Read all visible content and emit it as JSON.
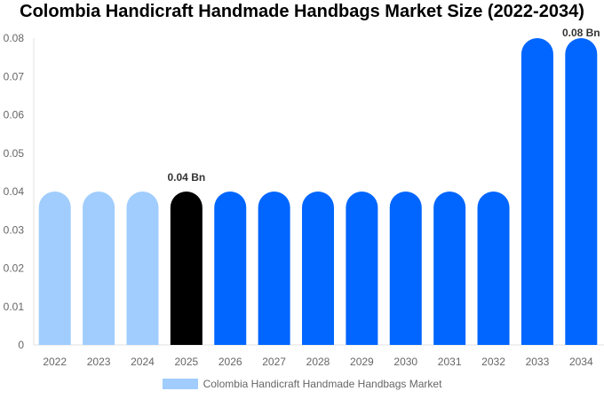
{
  "chart_data": {
    "type": "bar",
    "title": "Colombia Handicraft Handmade Handbags Market Size (2022-2034)",
    "categories": [
      "2022",
      "2023",
      "2024",
      "2025",
      "2026",
      "2027",
      "2028",
      "2029",
      "2030",
      "2031",
      "2032",
      "2033",
      "2034"
    ],
    "series": [
      {
        "name": "Colombia Handicraft Handmade Handbags Market",
        "values": [
          0.04,
          0.04,
          0.04,
          0.04,
          0.04,
          0.04,
          0.04,
          0.04,
          0.04,
          0.04,
          0.04,
          0.08,
          0.08
        ]
      }
    ],
    "bar_colors": [
      "#a0cdfd",
      "#a0cdfd",
      "#a0cdfd",
      "#000000",
      "#0066ff",
      "#0066ff",
      "#0066ff",
      "#0066ff",
      "#0066ff",
      "#0066ff",
      "#0066ff",
      "#0066ff",
      "#0066ff"
    ],
    "data_labels": {
      "3": "0.04 Bn",
      "12": "0.08 Bn"
    },
    "yticks": [
      "0",
      "0.01",
      "0.02",
      "0.03",
      "0.04",
      "0.05",
      "0.06",
      "0.07",
      "0.08"
    ],
    "ylim": [
      0,
      0.08
    ],
    "xlabel": "",
    "ylabel": "",
    "legend": {
      "label": "Colombia Handicraft Handmade Handbags Market",
      "color": "#a0cdfd",
      "position": "bottom"
    }
  }
}
